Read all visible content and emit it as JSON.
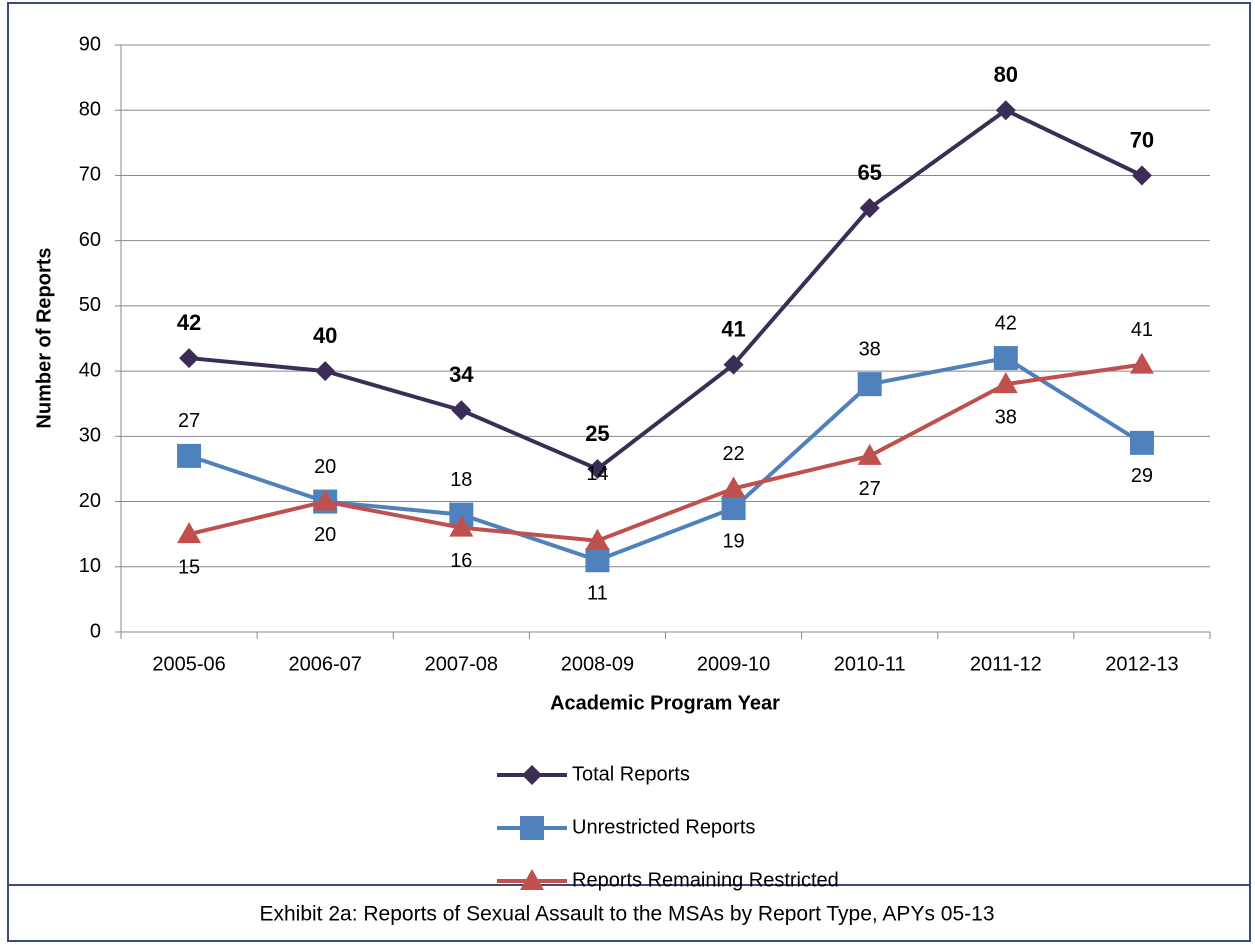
{
  "chart_data": {
    "type": "line",
    "categories": [
      "2005-06",
      "2006-07",
      "2007-08",
      "2008-09",
      "2009-10",
      "2010-11",
      "2011-12",
      "2012-13"
    ],
    "series": [
      {
        "name": "Total Reports",
        "color": "#3b2d55",
        "marker": "diamond",
        "values": [
          42,
          40,
          34,
          25,
          41,
          65,
          80,
          70
        ]
      },
      {
        "name": "Unrestricted Reports",
        "color": "#4f81bd",
        "marker": "square",
        "values": [
          27,
          20,
          18,
          11,
          19,
          38,
          42,
          29
        ]
      },
      {
        "name": "Reports Remaining Restricted",
        "color": "#c0504d",
        "marker": "triangle",
        "values": [
          15,
          20,
          16,
          14,
          22,
          27,
          38,
          41
        ]
      }
    ],
    "ylim": [
      0,
      90
    ],
    "yticks": [
      0,
      10,
      20,
      30,
      40,
      50,
      60,
      70,
      80,
      90
    ],
    "grid": true,
    "ylabel": "Number of Reports",
    "xlabel": "Academic Program Year",
    "legend": "bottom"
  },
  "caption": "Exhibit 2a:  Reports of Sexual Assault to the MSAs by Report Type, APYs 05-13"
}
